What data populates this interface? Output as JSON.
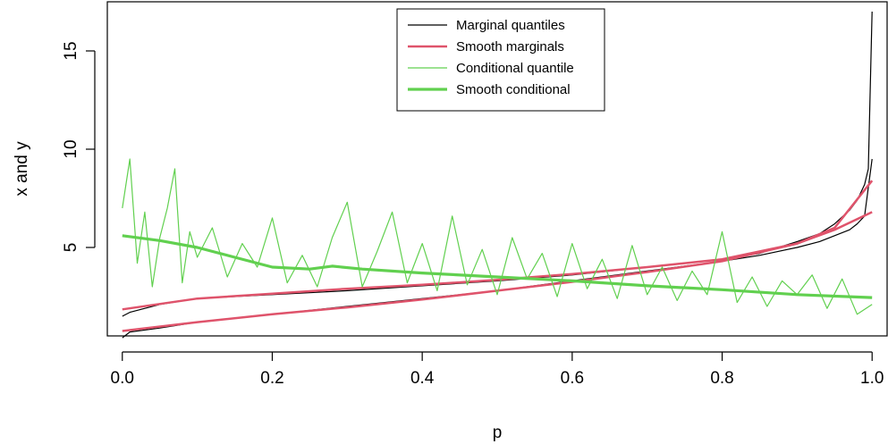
{
  "chart_data": {
    "type": "line",
    "title": "",
    "xlabel": "p",
    "ylabel": "x and y",
    "xlim": [
      -0.02,
      1.02
    ],
    "ylim": [
      0.5,
      17.5
    ],
    "x_ticks": [
      0.0,
      0.2,
      0.4,
      0.6,
      0.8,
      1.0
    ],
    "x_tick_labels": [
      "0.0",
      "0.2",
      "0.4",
      "0.6",
      "0.8",
      "1.0"
    ],
    "y_ticks": [
      5,
      10,
      15
    ],
    "y_tick_labels": [
      "5",
      "10",
      "15"
    ],
    "grid": false,
    "legend_position": "top-center",
    "legend": [
      {
        "label": "Marginal quantiles",
        "color": "#000000",
        "width": 1.2
      },
      {
        "label": "Smooth marginals",
        "color": "#DF536B",
        "width": 2.5
      },
      {
        "label": "Conditional quantile",
        "color": "#61D04F",
        "width": 1.2
      },
      {
        "label": "Smooth conditional",
        "color": "#61D04F",
        "width": 3.2
      }
    ],
    "series": [
      {
        "label_ref": 0,
        "color": "#000000",
        "x": [
          0.0,
          0.01,
          0.05,
          0.1,
          0.2,
          0.3,
          0.4,
          0.5,
          0.6,
          0.7,
          0.8,
          0.85,
          0.9,
          0.93,
          0.95,
          0.97,
          0.98,
          0.99,
          0.995,
          1.0
        ],
        "y": [
          1.5,
          1.7,
          2.1,
          2.4,
          2.6,
          2.8,
          3.05,
          3.3,
          3.6,
          4.0,
          4.4,
          4.7,
          5.3,
          5.7,
          6.2,
          6.9,
          7.4,
          8.2,
          9.0,
          17.0
        ]
      },
      {
        "label_ref": 0,
        "color": "#000000",
        "x": [
          0.0,
          0.01,
          0.05,
          0.1,
          0.2,
          0.3,
          0.4,
          0.5,
          0.6,
          0.7,
          0.8,
          0.85,
          0.9,
          0.93,
          0.95,
          0.97,
          0.98,
          0.99,
          1.0
        ],
        "y": [
          0.4,
          0.7,
          0.9,
          1.2,
          1.6,
          2.0,
          2.4,
          2.8,
          3.3,
          3.8,
          4.3,
          4.6,
          5.0,
          5.3,
          5.6,
          5.9,
          6.2,
          6.6,
          9.5
        ]
      },
      {
        "label_ref": 1,
        "color": "#DF536B",
        "x": [
          0.0,
          0.1,
          0.2,
          0.3,
          0.4,
          0.5,
          0.6,
          0.7,
          0.8,
          0.9,
          0.95,
          1.0
        ],
        "y": [
          1.85,
          2.4,
          2.65,
          2.9,
          3.1,
          3.35,
          3.65,
          4.0,
          4.4,
          5.2,
          6.0,
          8.4
        ]
      },
      {
        "label_ref": 1,
        "color": "#DF536B",
        "x": [
          0.0,
          0.1,
          0.2,
          0.3,
          0.4,
          0.5,
          0.6,
          0.7,
          0.8,
          0.9,
          0.95,
          1.0
        ],
        "y": [
          0.75,
          1.2,
          1.6,
          1.95,
          2.35,
          2.8,
          3.25,
          3.75,
          4.3,
          5.2,
          5.9,
          6.8
        ]
      },
      {
        "label_ref": 2,
        "color": "#61D04F",
        "x": [
          0.0,
          0.01,
          0.02,
          0.03,
          0.04,
          0.05,
          0.06,
          0.07,
          0.08,
          0.09,
          0.1,
          0.12,
          0.14,
          0.16,
          0.18,
          0.2,
          0.22,
          0.24,
          0.26,
          0.28,
          0.3,
          0.32,
          0.34,
          0.36,
          0.38,
          0.4,
          0.42,
          0.44,
          0.46,
          0.48,
          0.5,
          0.52,
          0.54,
          0.56,
          0.58,
          0.6,
          0.62,
          0.64,
          0.66,
          0.68,
          0.7,
          0.72,
          0.74,
          0.76,
          0.78,
          0.8,
          0.82,
          0.84,
          0.86,
          0.88,
          0.9,
          0.92,
          0.94,
          0.96,
          0.98,
          1.0
        ],
        "y": [
          7.0,
          9.5,
          4.2,
          6.8,
          3.0,
          5.5,
          7.0,
          9.0,
          3.2,
          5.8,
          4.5,
          6.0,
          3.5,
          5.2,
          4.0,
          6.5,
          3.2,
          4.6,
          3.0,
          5.5,
          7.3,
          3.0,
          4.8,
          6.8,
          3.2,
          5.2,
          2.8,
          6.6,
          3.1,
          4.9,
          2.6,
          5.5,
          3.4,
          4.7,
          2.5,
          5.2,
          2.9,
          4.4,
          2.4,
          5.1,
          2.6,
          4.0,
          2.3,
          3.8,
          2.6,
          5.8,
          2.2,
          3.5,
          2.0,
          3.3,
          2.6,
          3.6,
          1.9,
          3.4,
          1.6,
          2.1
        ]
      },
      {
        "label_ref": 3,
        "color": "#61D04F",
        "x": [
          0.0,
          0.05,
          0.1,
          0.15,
          0.2,
          0.25,
          0.28,
          0.32,
          0.4,
          0.5,
          0.6,
          0.7,
          0.8,
          0.9,
          1.0
        ],
        "y": [
          5.6,
          5.35,
          5.0,
          4.5,
          4.0,
          3.9,
          4.05,
          3.9,
          3.7,
          3.5,
          3.3,
          3.05,
          2.85,
          2.6,
          2.45
        ]
      }
    ]
  }
}
